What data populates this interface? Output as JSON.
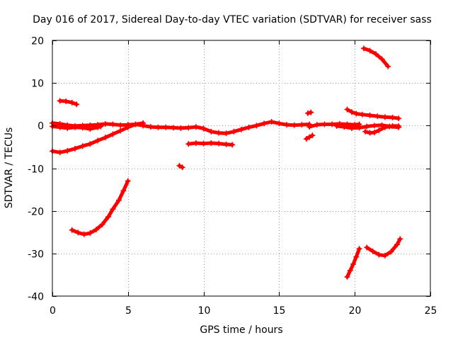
{
  "chart_data": {
    "type": "scatter",
    "title": "Day 016 of 2017, Sidereal Day-to-day VTEC variation (SDTVAR) for receiver sass",
    "xlabel": "GPS time / hours",
    "ylabel": "SDTVAR / TECUs",
    "xlim": [
      0,
      25
    ],
    "ylim": [
      -40,
      20
    ],
    "x_ticks": [
      0,
      5,
      10,
      15,
      20,
      25
    ],
    "y_ticks": [
      -40,
      -30,
      -20,
      -10,
      0,
      10,
      20
    ],
    "grid": true,
    "marker_color": "#ff0000",
    "series": [
      {
        "name": "main-track",
        "points": [
          [
            0.0,
            0.6
          ],
          [
            0.5,
            0.4
          ],
          [
            1.0,
            0.1
          ],
          [
            1.5,
            -0.1
          ],
          [
            2.0,
            0.0
          ],
          [
            2.5,
            0.1
          ],
          [
            3.0,
            0.2
          ],
          [
            3.5,
            0.4
          ],
          [
            4.0,
            0.3
          ],
          [
            4.5,
            0.1
          ],
          [
            5.0,
            0.2
          ],
          [
            5.5,
            0.3
          ],
          [
            6.0,
            0.0
          ],
          [
            6.5,
            -0.3
          ],
          [
            7.0,
            -0.4
          ],
          [
            7.5,
            -0.4
          ],
          [
            8.0,
            -0.5
          ],
          [
            8.5,
            -0.6
          ],
          [
            9.0,
            -0.5
          ],
          [
            9.5,
            -0.3
          ],
          [
            10.0,
            -0.7
          ],
          [
            10.5,
            -1.4
          ],
          [
            11.0,
            -1.7
          ],
          [
            11.5,
            -1.8
          ],
          [
            12.0,
            -1.4
          ],
          [
            12.5,
            -0.9
          ],
          [
            13.0,
            -0.4
          ],
          [
            13.5,
            0.0
          ],
          [
            14.0,
            0.5
          ],
          [
            14.5,
            0.9
          ],
          [
            15.0,
            0.5
          ],
          [
            15.5,
            0.2
          ],
          [
            16.0,
            0.1
          ],
          [
            16.5,
            0.2
          ],
          [
            17.0,
            0.3
          ]
        ]
      },
      {
        "name": "main-track-2",
        "points": [
          [
            17.0,
            -0.3
          ],
          [
            17.5,
            0.2
          ],
          [
            18.0,
            0.3
          ],
          [
            18.5,
            0.3
          ],
          [
            19.0,
            0.4
          ],
          [
            19.5,
            0.3
          ],
          [
            20.0,
            0.2
          ],
          [
            20.3,
            0.3
          ]
        ]
      },
      {
        "name": "track-a",
        "points": [
          [
            0.0,
            -0.2
          ],
          [
            0.5,
            -0.4
          ],
          [
            1.0,
            -0.6
          ],
          [
            1.5,
            -0.4
          ],
          [
            2.0,
            -0.5
          ],
          [
            2.5,
            -0.8
          ],
          [
            3.0,
            -0.4
          ],
          [
            3.2,
            -0.2
          ]
        ]
      },
      {
        "name": "track-b",
        "points": [
          [
            0.0,
            -6.0
          ],
          [
            0.5,
            -6.3
          ],
          [
            1.0,
            -5.9
          ],
          [
            1.5,
            -5.4
          ],
          [
            2.0,
            -4.8
          ],
          [
            2.5,
            -4.3
          ],
          [
            3.0,
            -3.5
          ],
          [
            3.5,
            -2.8
          ],
          [
            4.0,
            -2.0
          ],
          [
            4.5,
            -1.2
          ],
          [
            5.0,
            -0.4
          ],
          [
            5.5,
            0.3
          ],
          [
            6.0,
            0.6
          ]
        ]
      },
      {
        "name": "track-c",
        "points": [
          [
            0.5,
            5.8
          ],
          [
            0.9,
            5.7
          ],
          [
            1.3,
            5.4
          ],
          [
            1.6,
            5.0
          ]
        ]
      },
      {
        "name": "track-d",
        "points": [
          [
            1.3,
            -24.5
          ],
          [
            1.7,
            -25.1
          ],
          [
            2.1,
            -25.5
          ],
          [
            2.5,
            -25.2
          ],
          [
            2.9,
            -24.4
          ],
          [
            3.3,
            -23.2
          ],
          [
            3.7,
            -21.4
          ],
          [
            4.0,
            -19.6
          ],
          [
            4.4,
            -17.5
          ],
          [
            4.7,
            -15.3
          ],
          [
            5.0,
            -13.0
          ]
        ]
      },
      {
        "name": "track-e",
        "points": [
          [
            8.4,
            -9.4
          ],
          [
            8.6,
            -9.8
          ]
        ]
      },
      {
        "name": "track-f",
        "points": [
          [
            9.0,
            -4.3
          ],
          [
            9.5,
            -4.1
          ],
          [
            10.0,
            -4.2
          ],
          [
            10.5,
            -4.1
          ],
          [
            11.0,
            -4.2
          ],
          [
            11.5,
            -4.4
          ],
          [
            11.9,
            -4.5
          ]
        ]
      },
      {
        "name": "track-g",
        "points": [
          [
            16.8,
            -3.1
          ],
          [
            17.0,
            -2.7
          ],
          [
            17.2,
            -2.3
          ]
        ]
      },
      {
        "name": "track-h",
        "points": [
          [
            16.9,
            2.9
          ],
          [
            17.1,
            3.1
          ]
        ]
      },
      {
        "name": "track-i",
        "points": [
          [
            19.5,
            3.8
          ],
          [
            19.8,
            3.2
          ],
          [
            20.1,
            2.8
          ],
          [
            20.5,
            2.6
          ],
          [
            21.0,
            2.4
          ],
          [
            21.5,
            2.2
          ],
          [
            22.0,
            2.0
          ],
          [
            22.5,
            1.9
          ],
          [
            22.9,
            1.7
          ]
        ]
      },
      {
        "name": "track-j",
        "points": [
          [
            18.8,
            -0.1
          ],
          [
            19.3,
            -0.3
          ],
          [
            19.8,
            -0.6
          ],
          [
            20.3,
            -0.5
          ],
          [
            20.8,
            -0.2
          ],
          [
            21.3,
            0.0
          ],
          [
            21.8,
            0.1
          ],
          [
            22.3,
            -0.2
          ],
          [
            22.9,
            -0.4
          ]
        ]
      },
      {
        "name": "track-k",
        "points": [
          [
            20.7,
            -1.4
          ],
          [
            21.0,
            -1.7
          ],
          [
            21.3,
            -1.6
          ],
          [
            21.6,
            -1.1
          ],
          [
            22.0,
            -0.4
          ],
          [
            22.5,
            -0.1
          ],
          [
            22.9,
            -0.1
          ]
        ]
      },
      {
        "name": "track-l",
        "points": [
          [
            20.6,
            18.1
          ],
          [
            21.0,
            17.6
          ],
          [
            21.4,
            16.8
          ],
          [
            21.8,
            15.6
          ],
          [
            22.2,
            13.9
          ]
        ]
      },
      {
        "name": "track-m",
        "points": [
          [
            19.5,
            -35.5
          ],
          [
            19.7,
            -34.0
          ],
          [
            19.9,
            -32.5
          ],
          [
            20.1,
            -30.8
          ],
          [
            20.3,
            -28.9
          ]
        ]
      },
      {
        "name": "track-n",
        "points": [
          [
            20.8,
            -28.6
          ],
          [
            21.2,
            -29.5
          ],
          [
            21.6,
            -30.3
          ],
          [
            22.0,
            -30.5
          ],
          [
            22.4,
            -29.6
          ],
          [
            22.8,
            -27.9
          ],
          [
            23.0,
            -26.6
          ]
        ]
      }
    ]
  }
}
